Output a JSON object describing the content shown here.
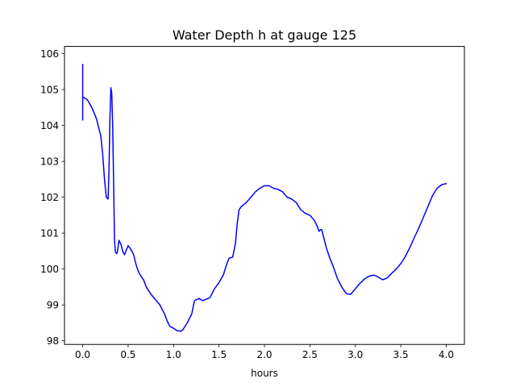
{
  "chart_data": {
    "type": "line",
    "title": "Water Depth h at gauge 125",
    "xlabel": "hours",
    "ylabel": "",
    "xlim": [
      -0.2,
      4.2
    ],
    "ylim": [
      97.9,
      106.2
    ],
    "xticks": [
      0.0,
      0.5,
      1.0,
      1.5,
      2.0,
      2.5,
      3.0,
      3.5,
      4.0
    ],
    "xtick_labels": [
      "0.0",
      "0.5",
      "1.0",
      "1.5",
      "2.0",
      "2.5",
      "3.0",
      "3.5",
      "4.0"
    ],
    "yticks": [
      98,
      99,
      100,
      101,
      102,
      103,
      104,
      105,
      106
    ],
    "ytick_labels": [
      "98",
      "99",
      "100",
      "101",
      "102",
      "103",
      "104",
      "105",
      "106"
    ],
    "grid": false,
    "legend": "none",
    "series": [
      {
        "color": "#0000ff",
        "x": [
          0.0,
          0.0,
          0.0,
          0.01,
          0.05,
          0.1,
          0.15,
          0.2,
          0.22,
          0.24,
          0.26,
          0.28,
          0.29,
          0.3,
          0.31,
          0.32,
          0.33,
          0.34,
          0.35,
          0.36,
          0.37,
          0.38,
          0.4,
          0.42,
          0.44,
          0.46,
          0.5,
          0.53,
          0.56,
          0.59,
          0.61,
          0.64,
          0.67,
          0.7,
          0.75,
          0.8,
          0.85,
          0.9,
          0.93,
          0.96,
          1.0,
          1.04,
          1.08,
          1.1,
          1.15,
          1.2,
          1.23,
          1.28,
          1.32,
          1.4,
          1.45,
          1.5,
          1.55,
          1.58,
          1.61,
          1.65,
          1.68,
          1.7,
          1.72,
          1.75,
          1.8,
          1.85,
          1.9,
          1.95,
          2.0,
          2.05,
          2.1,
          2.15,
          2.2,
          2.25,
          2.3,
          2.35,
          2.4,
          2.45,
          2.5,
          2.55,
          2.58,
          2.6,
          2.62,
          2.63,
          2.65,
          2.68,
          2.72,
          2.76,
          2.8,
          2.85,
          2.9,
          2.92,
          2.95,
          3.0,
          3.05,
          3.1,
          3.15,
          3.2,
          3.22,
          3.25,
          3.3,
          3.35,
          3.4,
          3.45,
          3.5,
          3.55,
          3.6,
          3.65,
          3.7,
          3.75,
          3.8,
          3.85,
          3.9,
          3.95,
          4.0
        ],
        "y": [
          104.15,
          105.7,
          104.8,
          104.78,
          104.72,
          104.5,
          104.2,
          103.7,
          103.2,
          102.5,
          102.0,
          101.95,
          102.8,
          104.2,
          105.05,
          104.9,
          104.0,
          102.5,
          100.8,
          100.48,
          100.43,
          100.45,
          100.8,
          100.7,
          100.5,
          100.4,
          100.65,
          100.55,
          100.4,
          100.1,
          99.95,
          99.8,
          99.7,
          99.5,
          99.3,
          99.15,
          99.0,
          98.75,
          98.55,
          98.4,
          98.35,
          98.28,
          98.27,
          98.3,
          98.5,
          98.75,
          99.12,
          99.18,
          99.12,
          99.2,
          99.45,
          99.62,
          99.85,
          100.1,
          100.3,
          100.33,
          100.7,
          101.25,
          101.65,
          101.75,
          101.85,
          102.0,
          102.15,
          102.25,
          102.32,
          102.32,
          102.25,
          102.22,
          102.15,
          102.0,
          101.95,
          101.85,
          101.65,
          101.55,
          101.5,
          101.35,
          101.2,
          101.05,
          101.1,
          101.1,
          100.9,
          100.6,
          100.3,
          100.05,
          99.75,
          99.5,
          99.32,
          99.3,
          99.3,
          99.45,
          99.6,
          99.72,
          99.8,
          99.83,
          99.82,
          99.78,
          99.7,
          99.75,
          99.88,
          100.0,
          100.15,
          100.35,
          100.6,
          100.88,
          101.15,
          101.45,
          101.75,
          102.05,
          102.25,
          102.35,
          102.38
        ]
      }
    ]
  }
}
